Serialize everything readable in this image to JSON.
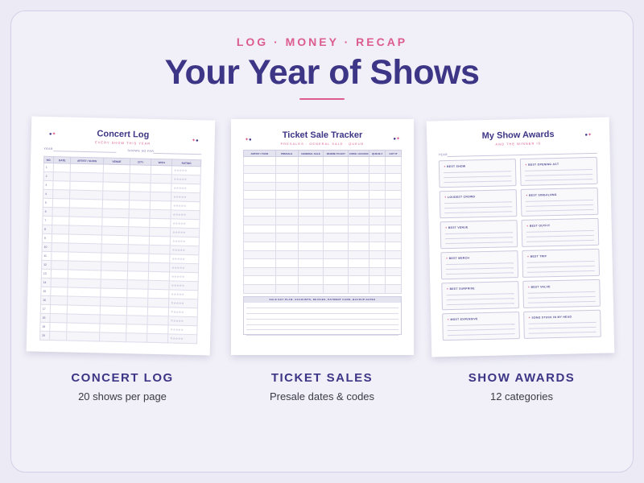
{
  "header": {
    "kicker": "LOG · MONEY · RECAP",
    "title": "Your Year of Shows"
  },
  "concert_log": {
    "title": "Concert Log",
    "subtitle": "EVERY SHOW THIS YEAR",
    "year_label": "YEAR",
    "shows_label": "SHOWS SO FAR",
    "columns": [
      "NO.",
      "DATE",
      "ARTIST / SHOW",
      "VENUE",
      "CITY",
      "WITH",
      "RATING"
    ],
    "rows": [
      "1",
      "2",
      "3",
      "4",
      "5",
      "6",
      "7",
      "8",
      "9",
      "10",
      "11",
      "12",
      "13",
      "14",
      "15",
      "16",
      "17",
      "18",
      "19",
      "20"
    ],
    "rating": "☆☆☆☆☆"
  },
  "ticket_tracker": {
    "title": "Ticket Sale Tracker",
    "subtitle": "PRESALES · GENERAL SALE · QUEUE",
    "columns": [
      "ARTIST / TOUR",
      "PRESALE",
      "GENERAL SALE",
      "WHERE TO BUY",
      "CODE / ACCESS",
      "QUEUE #",
      "GOT IT"
    ],
    "row_count": 16,
    "plan_label": "SALE DAY PLAN: ACCOUNTS, DEVICES, PAYMENT CARD, BACKUP DATES"
  },
  "show_awards": {
    "title": "My Show Awards",
    "subtitle": "AND THE WINNER IS",
    "year_label": "YEAR",
    "awards": [
      "BEST SHOW",
      "BEST OPENING ACT",
      "LOUDEST CROWD",
      "BEST SINGALONG",
      "BEST VENUE",
      "BEST OUTFIT",
      "BEST MERCH",
      "BEST TRIP",
      "BEST SURPRISE",
      "BEST VALUE",
      "MOST EXPENSIVE",
      "SONG STUCK IN MY HEAD"
    ]
  },
  "captions": [
    {
      "heading": "CONCERT LOG",
      "sub": "20 shows per page"
    },
    {
      "heading": "TICKET SALES",
      "sub": "Presale dates & codes"
    },
    {
      "heading": "SHOW AWARDS",
      "sub": "12 categories"
    }
  ],
  "colors": {
    "accent": "#dc5c8f",
    "primary": "#3d3585",
    "background": "#ecebf5"
  }
}
